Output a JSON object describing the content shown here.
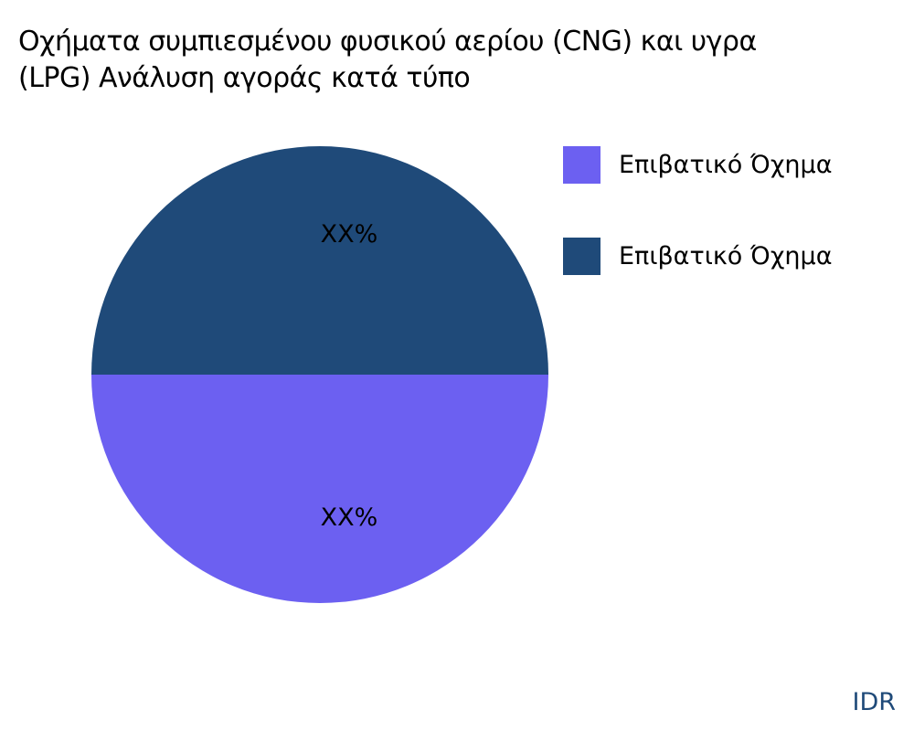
{
  "chart_data": {
    "type": "pie",
    "title_lines": [
      "Οχήματα συμπιεσμένου φυσικού αερίου (CNG) και υγρα",
      "(LPG) Ανάλυση αγοράς κατά τύπο"
    ],
    "slices": [
      {
        "name": "Επιβατικό Όχημα",
        "value": 50,
        "label": "XX%",
        "color": "#6C60F1"
      },
      {
        "name": "Επιβατικό Όχημα",
        "value": 50,
        "label": "XX%",
        "color": "#1F4A79"
      }
    ],
    "legend_position": "right"
  },
  "watermark": {
    "text": "IDR",
    "color": "#1F4A79"
  }
}
